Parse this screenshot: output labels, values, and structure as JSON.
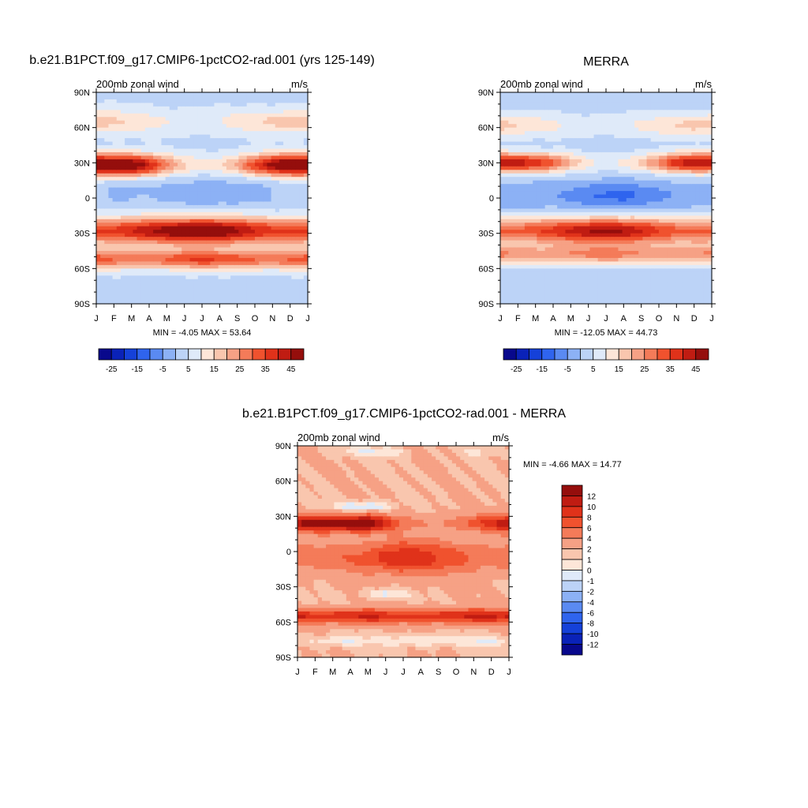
{
  "chart_data": [
    {
      "type": "heatmap",
      "title": "b.e21.B1PCT.f09_g17.CMIP6-1pctCO2-rad.001 (yrs 125-149)",
      "left_label": "200mb zonal wind",
      "units": "m/s",
      "xlabel": "",
      "ylabel": "",
      "x_ticks": [
        "J",
        "F",
        "M",
        "A",
        "M",
        "J",
        "J",
        "A",
        "S",
        "O",
        "N",
        "D",
        "J"
      ],
      "y_ticks": [
        "90N",
        "60N",
        "30N",
        "0",
        "30S",
        "60S",
        "90S"
      ],
      "ylim": [
        -90,
        90
      ],
      "stats": "MIN =  -4.05 MAX =  53.64",
      "colorbar_orientation": "horizontal",
      "colorbar_labels": [
        "-25",
        "-15",
        "-5",
        "5",
        "15",
        "25",
        "35",
        "45"
      ],
      "levels": [
        -30,
        -25,
        -20,
        -15,
        -10,
        -5,
        0,
        5,
        10,
        15,
        20,
        25,
        30,
        35,
        40,
        45,
        50
      ],
      "field": {
        "jets": [
          {
            "lat": 28,
            "width": 9,
            "values": [
              52,
              52,
              50,
              38,
              22,
              12,
              8,
              10,
              18,
              32,
              44,
              52,
              52
            ]
          },
          {
            "lat": -28,
            "width": 11,
            "values": [
              32,
              33,
              36,
              40,
              44,
              48,
              50,
              48,
              42,
              36,
              32,
              32,
              32
            ]
          },
          {
            "lat": -52,
            "width": 8,
            "values": [
              28,
              26,
              24,
              24,
              26,
              30,
              32,
              30,
              28,
              26,
              24,
              26,
              28
            ]
          },
          {
            "lat": 65,
            "width": 10,
            "values": [
              14,
              12,
              10,
              8,
              6,
              5,
              5,
              6,
              8,
              10,
              12,
              14,
              14
            ]
          }
        ],
        "equator": {
          "lat": 5,
          "width": 14,
          "values": [
            2,
            -2,
            -1,
            0,
            -2,
            -3,
            -4,
            -4,
            -3,
            -2,
            0,
            2,
            2
          ]
        },
        "background": 4
      }
    },
    {
      "type": "heatmap",
      "title": "MERRA",
      "left_label": "200mb zonal wind",
      "units": "m/s",
      "xlabel": "",
      "ylabel": "",
      "x_ticks": [
        "J",
        "F",
        "M",
        "A",
        "M",
        "J",
        "J",
        "A",
        "S",
        "O",
        "N",
        "D",
        "J"
      ],
      "y_ticks": [
        "90N",
        "60N",
        "30N",
        "0",
        "30S",
        "60S",
        "90S"
      ],
      "ylim": [
        -90,
        90
      ],
      "stats": "MIN =  -12.05 MAX =  44.73",
      "colorbar_orientation": "horizontal",
      "colorbar_labels": [
        "-25",
        "-15",
        "-5",
        "5",
        "15",
        "25",
        "35",
        "45"
      ],
      "levels": [
        -30,
        -25,
        -20,
        -15,
        -10,
        -5,
        0,
        5,
        10,
        15,
        20,
        25,
        30,
        35,
        40,
        45,
        50
      ],
      "field": {
        "jets": [
          {
            "lat": 30,
            "width": 8,
            "values": [
              42,
              40,
              36,
              28,
              16,
              8,
              6,
              8,
              14,
              24,
              36,
              42,
              42
            ]
          },
          {
            "lat": -28,
            "width": 11,
            "values": [
              28,
              28,
              30,
              34,
              38,
              42,
              44,
              42,
              38,
              32,
              28,
              28,
              28
            ]
          },
          {
            "lat": -48,
            "width": 8,
            "values": [
              22,
              20,
              18,
              18,
              20,
              22,
              24,
              22,
              20,
              18,
              18,
              20,
              22
            ]
          },
          {
            "lat": 62,
            "width": 10,
            "values": [
              14,
              12,
              10,
              8,
              6,
              5,
              5,
              6,
              8,
              10,
              12,
              14,
              14
            ]
          }
        ],
        "equator": {
          "lat": 2,
          "width": 13,
          "values": [
            -3,
            -5,
            -5,
            -4,
            -6,
            -9,
            -11,
            -12,
            -9,
            -6,
            -4,
            -3,
            -3
          ]
        },
        "background": 3
      }
    },
    {
      "type": "heatmap",
      "title": "b.e21.B1PCT.f09_g17.CMIP6-1pctCO2-rad.001 - MERRA",
      "left_label": "200mb zonal wind",
      "units": "m/s",
      "xlabel": "",
      "ylabel": "",
      "x_ticks": [
        "J",
        "F",
        "M",
        "A",
        "M",
        "J",
        "J",
        "A",
        "S",
        "O",
        "N",
        "D",
        "J"
      ],
      "y_ticks": [
        "90N",
        "60N",
        "30N",
        "0",
        "30S",
        "60S",
        "90S"
      ],
      "ylim": [
        -90,
        90
      ],
      "stats": "MIN =  -4.66 MAX =  14.77",
      "colorbar_orientation": "vertical",
      "colorbar_labels": [
        "12",
        "10",
        "8",
        "6",
        "4",
        "2",
        "1",
        "0",
        "-1",
        "-2",
        "-4",
        "-6",
        "-8",
        "-10",
        "-12"
      ],
      "levels": [
        -14,
        -12,
        -10,
        -8,
        -6,
        -4,
        -2,
        -1,
        0,
        1,
        2,
        4,
        6,
        8,
        10,
        12,
        14
      ],
      "field": {
        "jets": [
          {
            "lat": 24,
            "width": 7,
            "values": [
              10,
              11,
              12,
              12,
              13,
              7,
              3,
              2,
              2,
              3,
              5,
              7,
              10
            ]
          },
          {
            "lat": -55,
            "width": 6,
            "values": [
              8,
              7,
              7,
              8,
              9,
              7,
              6,
              7,
              7,
              8,
              9,
              8,
              8
            ]
          },
          {
            "lat": -5,
            "width": 14,
            "values": [
              3,
              3,
              3,
              4,
              5,
              7,
              8,
              7,
              6,
              5,
              4,
              3,
              3
            ]
          },
          {
            "lat": 38,
            "width": 4,
            "values": [
              0,
              0,
              -1,
              -3,
              -4,
              -2,
              0,
              0,
              0,
              0,
              0,
              0,
              0
            ]
          },
          {
            "lat": -36,
            "width": 4,
            "values": [
              0,
              0,
              0,
              0,
              -1,
              -3,
              -1,
              0,
              0,
              0,
              0,
              0,
              0
            ]
          },
          {
            "lat": -76,
            "width": 5,
            "values": [
              -1,
              -1,
              -2,
              -2,
              -1,
              -1,
              -2,
              -2,
              -2,
              -1,
              -2,
              -2,
              -1
            ]
          },
          {
            "lat": 85,
            "width": 4,
            "values": [
              0,
              0,
              -1,
              -1,
              -2,
              -2,
              -1,
              0,
              0,
              0,
              -1,
              -1,
              0
            ]
          }
        ],
        "background": 2
      }
    }
  ]
}
